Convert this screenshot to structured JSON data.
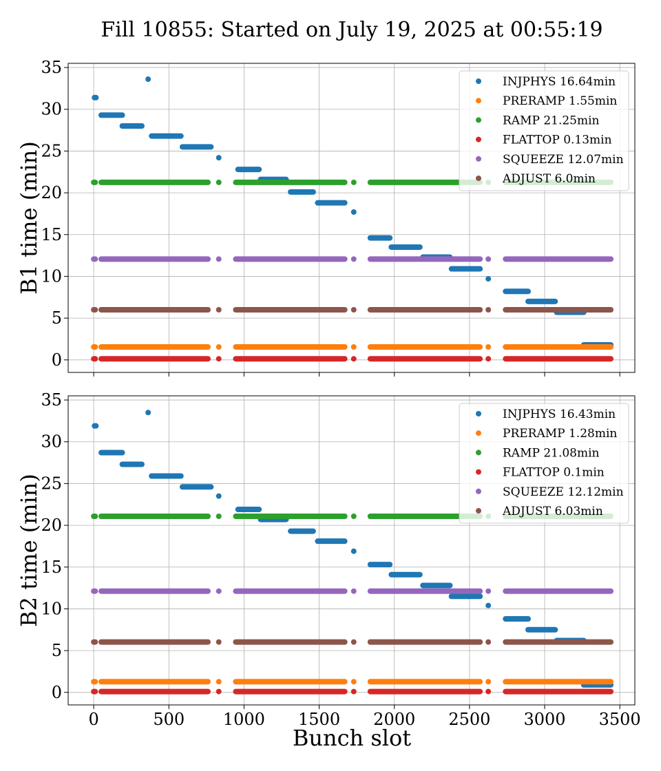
{
  "title": "Fill 10855: Started on July 19, 2025 at 00:55:19",
  "xlabel": "Bunch slot",
  "chart_data": [
    {
      "type": "scatter",
      "ylabel": "B1 time (min)",
      "xlim": [
        -170,
        3600
      ],
      "ylim": [
        -1.5,
        35.5
      ],
      "xticks": [
        0,
        500,
        1000,
        1500,
        2000,
        2500,
        3000,
        3500
      ],
      "yticks": [
        0,
        5,
        10,
        15,
        20,
        25,
        30,
        35
      ],
      "grid": true,
      "legend_position": "top-right",
      "series": [
        {
          "name": "INJPHYS 16.64min",
          "color": "#1f77b4",
          "type": "segments",
          "segments": [
            [
              5,
              15,
              31.4
            ],
            [
              50,
              190,
              29.3
            ],
            [
              190,
              320,
              28.0
            ],
            [
              385,
              580,
              26.8
            ],
            [
              590,
              780,
              25.5
            ],
            [
              960,
              1100,
              22.8
            ],
            [
              1110,
              1280,
              21.6
            ],
            [
              1310,
              1460,
              20.1
            ],
            [
              1490,
              1670,
              18.8
            ],
            [
              1840,
              1970,
              14.6
            ],
            [
              1980,
              2170,
              13.5
            ],
            [
              2190,
              2370,
              12.3
            ],
            [
              2380,
              2570,
              10.9
            ],
            [
              2740,
              2890,
              8.2
            ],
            [
              2890,
              3070,
              7.0
            ],
            [
              3080,
              3260,
              5.7
            ],
            [
              3260,
              3440,
              1.8
            ]
          ],
          "points": [
            [
              362,
              33.6
            ],
            [
              832,
              24.2
            ],
            [
              1730,
              17.7
            ],
            [
              2625,
              9.7
            ]
          ]
        },
        {
          "name": "PRERAMP 1.55min",
          "color": "#ff7f0e",
          "type": "bands",
          "y": 1.55
        },
        {
          "name": "RAMP 21.25min",
          "color": "#2ca02c",
          "type": "bands",
          "y": 21.25
        },
        {
          "name": "FLATTOP 0.13min",
          "color": "#d62728",
          "type": "bands",
          "y": 0.13
        },
        {
          "name": "SQUEEZE 12.07min",
          "color": "#9467bd",
          "type": "bands",
          "y": 12.07
        },
        {
          "name": "ADJUST 6.0min",
          "color": "#8c564b",
          "type": "bands",
          "y": 6.0
        }
      ]
    },
    {
      "type": "scatter",
      "ylabel": "B2 time (min)",
      "xlim": [
        -170,
        3600
      ],
      "ylim": [
        -1.5,
        35.5
      ],
      "xticks": [
        0,
        500,
        1000,
        1500,
        2000,
        2500,
        3000,
        3500
      ],
      "yticks": [
        0,
        5,
        10,
        15,
        20,
        25,
        30,
        35
      ],
      "grid": true,
      "legend_position": "top-right",
      "series": [
        {
          "name": "INJPHYS 16.43min",
          "color": "#1f77b4",
          "type": "segments",
          "segments": [
            [
              5,
              15,
              31.9
            ],
            [
              50,
              190,
              28.7
            ],
            [
              190,
              320,
              27.3
            ],
            [
              385,
              580,
              25.9
            ],
            [
              590,
              780,
              24.6
            ],
            [
              960,
              1100,
              21.9
            ],
            [
              1110,
              1280,
              20.7
            ],
            [
              1310,
              1460,
              19.3
            ],
            [
              1490,
              1670,
              18.1
            ],
            [
              1840,
              1970,
              15.3
            ],
            [
              1980,
              2170,
              14.1
            ],
            [
              2190,
              2370,
              12.8
            ],
            [
              2380,
              2570,
              11.5
            ],
            [
              2740,
              2890,
              8.8
            ],
            [
              2890,
              3070,
              7.5
            ],
            [
              3080,
              3260,
              6.2
            ],
            [
              3260,
              3440,
              0.9
            ]
          ],
          "points": [
            [
              362,
              33.5
            ],
            [
              832,
              23.5
            ],
            [
              1730,
              16.9
            ],
            [
              2625,
              10.4
            ]
          ]
        },
        {
          "name": "PRERAMP 1.28min",
          "color": "#ff7f0e",
          "type": "bands",
          "y": 1.28
        },
        {
          "name": "RAMP 21.08min",
          "color": "#2ca02c",
          "type": "bands",
          "y": 21.08
        },
        {
          "name": "FLATTOP 0.1min",
          "color": "#d62728",
          "type": "bands",
          "y": 0.1
        },
        {
          "name": "SQUEEZE 12.12min",
          "color": "#9467bd",
          "type": "bands",
          "y": 12.12
        },
        {
          "name": "ADJUST 6.03min",
          "color": "#8c564b",
          "type": "bands",
          "y": 6.03
        }
      ]
    }
  ],
  "bunch_bands": [
    [
      0,
      10
    ],
    [
      50,
      760
    ],
    [
      832,
      832
    ],
    [
      945,
      1670
    ],
    [
      1730,
      1730
    ],
    [
      1840,
      2570
    ],
    [
      2625,
      2625
    ],
    [
      2740,
      3440
    ]
  ]
}
